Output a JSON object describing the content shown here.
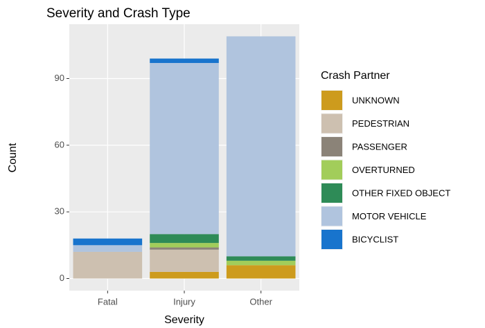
{
  "chart_data": {
    "type": "stacked_bar",
    "title": "Severity and Crash Type",
    "x_label": "Severity",
    "y_label": "Count",
    "legend_title": "Crash Partner",
    "categories": [
      "Fatal",
      "Injury",
      "Other"
    ],
    "series": [
      {
        "name": "UNKNOWN",
        "color": "#cd9b1d",
        "values": [
          0,
          3,
          6
        ]
      },
      {
        "name": "PEDESTRIAN",
        "color": "#cdc0b0",
        "values": [
          12,
          10,
          0
        ]
      },
      {
        "name": "PASSENGER",
        "color": "#8b8378",
        "values": [
          0,
          1,
          0
        ]
      },
      {
        "name": "OVERTURNED",
        "color": "#a2cd5a",
        "values": [
          0,
          2,
          2
        ]
      },
      {
        "name": "OTHER FIXED OBJECT",
        "color": "#2e8b57",
        "values": [
          0,
          4,
          2
        ]
      },
      {
        "name": "MOTOR VEHICLE",
        "color": "#b0c4de",
        "values": [
          3,
          77,
          99
        ]
      },
      {
        "name": "BICYCLIST",
        "color": "#1874cd",
        "values": [
          3,
          2,
          0
        ]
      }
    ],
    "ylim": [
      -5.45,
      114.45
    ],
    "yticks": [
      0,
      30,
      60,
      90
    ],
    "grid": true
  }
}
